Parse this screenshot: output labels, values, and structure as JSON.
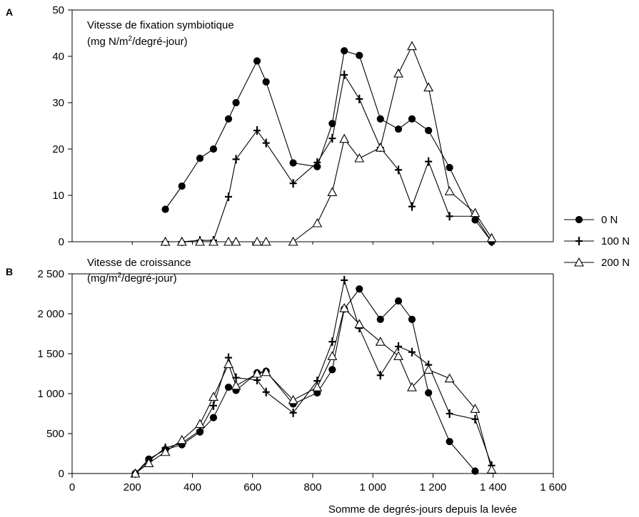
{
  "chart_data": {
    "type": "line",
    "xlabel": "Somme de degrés-jours depuis la levée",
    "x_ticks": [
      "0",
      "200",
      "400",
      "600",
      "800",
      "1 000",
      "1 200",
      "1 400",
      "1 600"
    ],
    "xlim": [
      0,
      1600
    ],
    "legend": {
      "placement": "right",
      "entries": [
        {
          "label": "0 N",
          "marker": "filled-circle"
        },
        {
          "label": "100 N",
          "marker": "plus"
        },
        {
          "label": "200 N",
          "marker": "open-triangle"
        }
      ]
    },
    "panels": [
      {
        "letter": "A",
        "title_line1": "Vitesse de fixation symbiotique",
        "title_line2_prefix": "(mg N/m",
        "title_line2_sup": "2",
        "title_line2_suffix": "/degré-jour)",
        "ylim": [
          0,
          50
        ],
        "y_ticks": [
          {
            "v": 0,
            "t": "0"
          },
          {
            "v": 10,
            "t": "10"
          },
          {
            "v": 20,
            "t": "20"
          },
          {
            "v": 30,
            "t": "30"
          },
          {
            "v": 40,
            "t": "40"
          },
          {
            "v": 50,
            "t": "50"
          }
        ],
        "series": [
          {
            "name": "0 N",
            "marker": "filled-circle",
            "x": [
              310,
              365,
              425,
              470,
              520,
              545,
              615,
              645,
              735,
              815,
              865,
              905,
              955,
              1025,
              1085,
              1130,
              1185,
              1255,
              1340,
              1395
            ],
            "y": [
              7,
              12,
              18,
              20,
              26.5,
              30,
              39,
              34.5,
              17,
              16.2,
              25.5,
              41.2,
              40.2,
              26.5,
              24.3,
              26.5,
              24,
              16,
              4.7,
              0
            ]
          },
          {
            "name": "100 N",
            "marker": "plus",
            "x": [
              310,
              365,
              425,
              470,
              520,
              545,
              615,
              645,
              735,
              815,
              865,
              905,
              955,
              1025,
              1085,
              1130,
              1185,
              1255,
              1340,
              1395
            ],
            "y": [
              0,
              0,
              0.3,
              0.3,
              9.7,
              17.8,
              24,
              21.3,
              12.6,
              17.1,
              22.3,
              36,
              30.8,
              20.3,
              15.5,
              7.6,
              17.3,
              5.5,
              5.5,
              0
            ]
          },
          {
            "name": "200 N",
            "marker": "open-triangle",
            "x": [
              310,
              365,
              425,
              470,
              520,
              545,
              615,
              645,
              735,
              815,
              865,
              905,
              955,
              1025,
              1085,
              1130,
              1185,
              1255,
              1340,
              1395
            ],
            "y": [
              0,
              0,
              0,
              0,
              0,
              0,
              0,
              0,
              0,
              4,
              10.7,
              22.2,
              18,
              20.3,
              36.3,
              42.2,
              33.3,
              10.9,
              6.2,
              0.8
            ]
          }
        ]
      },
      {
        "letter": "B",
        "title_line1": "Vitesse de croissance",
        "title_line2_prefix": "(mg/m",
        "title_line2_sup": "2",
        "title_line2_suffix": "/degré-jour)",
        "ylim": [
          0,
          2500
        ],
        "y_ticks": [
          {
            "v": 0,
            "t": "0"
          },
          {
            "v": 500,
            "t": "500"
          },
          {
            "v": 1000,
            "t": "1 000"
          },
          {
            "v": 1500,
            "t": "1 500"
          },
          {
            "v": 2000,
            "t": "2 000"
          },
          {
            "v": 2500,
            "t": "2 500"
          }
        ],
        "series": [
          {
            "name": "0 N",
            "marker": "filled-circle",
            "x": [
              210,
              255,
              310,
              365,
              425,
              470,
              520,
              545,
              615,
              645,
              735,
              815,
              865,
              905,
              955,
              1025,
              1085,
              1130,
              1185,
              1255,
              1340
            ],
            "y": [
              0,
              180,
              300,
              360,
              520,
              700,
              1080,
              1040,
              1260,
              1280,
              870,
              1010,
              1300,
              2060,
              2310,
              1930,
              2160,
              1930,
              1010,
              400,
              30
            ]
          },
          {
            "name": "100 N",
            "marker": "plus",
            "x": [
              210,
              255,
              310,
              365,
              425,
              470,
              520,
              545,
              615,
              645,
              735,
              815,
              865,
              905,
              955,
              1025,
              1085,
              1130,
              1185,
              1255,
              1340,
              1395
            ],
            "y": [
              0,
              160,
              320,
              380,
              540,
              850,
              1450,
              1200,
              1170,
              1020,
              760,
              1160,
              1650,
              2420,
              1820,
              1230,
              1590,
              1520,
              1360,
              750,
              680,
              100
            ]
          },
          {
            "name": "200 N",
            "marker": "open-triangle",
            "x": [
              210,
              255,
              310,
              365,
              425,
              470,
              520,
              545,
              615,
              645,
              735,
              815,
              865,
              905,
              955,
              1025,
              1085,
              1130,
              1185,
              1255,
              1340,
              1395
            ],
            "y": [
              0,
              130,
              270,
              420,
              620,
              960,
              1370,
              1100,
              1250,
              1270,
              920,
              1080,
              1470,
              2070,
              1870,
              1650,
              1470,
              1080,
              1300,
              1190,
              810,
              50
            ]
          }
        ]
      }
    ]
  }
}
